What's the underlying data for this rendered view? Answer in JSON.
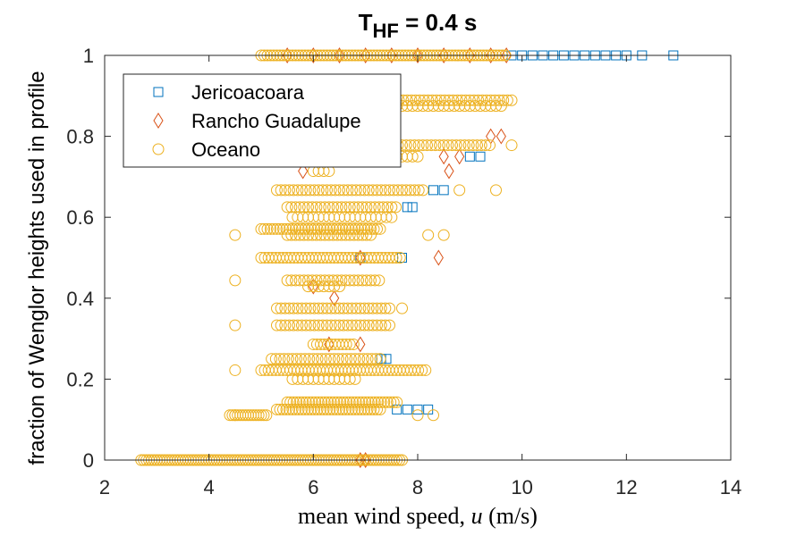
{
  "chart_data": {
    "type": "scatter",
    "title": "T",
    "title_sub": "HF",
    "title_rest": " = 0.4 s",
    "xlabel_pre": "mean wind speed, ",
    "xlabel_var": "u",
    "xlabel_post": " (m/s)",
    "ylabel": "fraction of Wenglor heights used in profile",
    "xlim": [
      2,
      14
    ],
    "ylim": [
      0,
      1
    ],
    "x_ticks": [
      2,
      4,
      6,
      8,
      10,
      12,
      14
    ],
    "x_tick_labels": [
      "2",
      "4",
      "6",
      "8",
      "10",
      "12",
      "14"
    ],
    "y_ticks": [
      0,
      0.2,
      0.4,
      0.6,
      0.8,
      1
    ],
    "y_tick_labels": [
      "0",
      "0.2",
      "0.4",
      "0.6",
      "0.8",
      "1"
    ],
    "grid": false,
    "legend_position": "top-left",
    "series": [
      {
        "name": "Jericoacoara",
        "marker": "square",
        "color": "#0072BD",
        "points": [
          [
            9.8,
            1
          ],
          [
            10.0,
            1
          ],
          [
            10.2,
            1
          ],
          [
            10.4,
            1
          ],
          [
            10.6,
            1
          ],
          [
            10.8,
            1
          ],
          [
            11.0,
            1
          ],
          [
            11.2,
            1
          ],
          [
            11.4,
            1
          ],
          [
            11.6,
            1
          ],
          [
            11.8,
            1
          ],
          [
            12.0,
            1
          ],
          [
            12.3,
            1
          ],
          [
            12.9,
            1
          ],
          [
            9.0,
            0.75
          ],
          [
            9.2,
            0.75
          ],
          [
            8.3,
            0.667
          ],
          [
            8.5,
            0.667
          ],
          [
            7.8,
            0.625
          ],
          [
            7.9,
            0.625
          ],
          [
            7.7,
            0.5
          ],
          [
            6.9,
            0.5
          ],
          [
            7.3,
            0.25
          ],
          [
            7.4,
            0.25
          ],
          [
            7.8,
            0.125
          ],
          [
            8.0,
            0.125
          ],
          [
            8.2,
            0.125
          ],
          [
            7.6,
            0.125
          ]
        ]
      },
      {
        "name": "Rancho Guadalupe",
        "marker": "diamond",
        "color": "#D95319",
        "points": [
          [
            5.5,
            1
          ],
          [
            6.0,
            1
          ],
          [
            6.5,
            1
          ],
          [
            7.0,
            1
          ],
          [
            7.5,
            1
          ],
          [
            8.0,
            1
          ],
          [
            8.5,
            1
          ],
          [
            9.0,
            1
          ],
          [
            9.4,
            1
          ],
          [
            9.7,
            1
          ],
          [
            9.4,
            0.8
          ],
          [
            9.6,
            0.8
          ],
          [
            8.5,
            0.75
          ],
          [
            8.8,
            0.75
          ],
          [
            8.6,
            0.714
          ],
          [
            5.8,
            0.714
          ],
          [
            8.4,
            0.5
          ],
          [
            6.9,
            0.5
          ],
          [
            6.0,
            0.429
          ],
          [
            6.4,
            0.4
          ],
          [
            6.3,
            0.286
          ],
          [
            6.9,
            0.286
          ],
          [
            6.9,
            0
          ],
          [
            7.0,
            0
          ]
        ]
      },
      {
        "name": "Oceano",
        "marker": "circle",
        "color": "#EDB120",
        "points": [
          [
            4.5,
            0.556
          ],
          [
            4.5,
            0.444
          ],
          [
            4.5,
            0.333
          ],
          [
            4.5,
            0.222
          ],
          [
            4.5,
            0.111
          ],
          [
            9.5,
            0.667
          ],
          [
            9.8,
            0.778
          ],
          [
            8.2,
            0.556
          ],
          [
            8.5,
            0.556
          ],
          [
            7.7,
            0.375
          ],
          [
            8.8,
            0.667
          ],
          [
            8.0,
            0.111
          ],
          [
            8.3,
            0.111
          ]
        ],
        "bands": [
          {
            "y": 1,
            "x0": 5.0,
            "x1": 9.7,
            "step": 0.06
          },
          {
            "y": 0.889,
            "x0": 7.0,
            "x1": 9.8,
            "step": 0.08
          },
          {
            "y": 0.875,
            "x0": 7.5,
            "x1": 9.6,
            "step": 0.1
          },
          {
            "y": 0.778,
            "x0": 6.9,
            "x1": 9.4,
            "step": 0.08
          },
          {
            "y": 0.75,
            "x0": 7.3,
            "x1": 8.0,
            "step": 0.1
          },
          {
            "y": 0.714,
            "x0": 6.0,
            "x1": 6.3,
            "step": 0.1
          },
          {
            "y": 0.667,
            "x0": 5.3,
            "x1": 8.1,
            "step": 0.08
          },
          {
            "y": 0.625,
            "x0": 5.5,
            "x1": 7.6,
            "step": 0.08
          },
          {
            "y": 0.6,
            "x0": 5.6,
            "x1": 7.5,
            "step": 0.1
          },
          {
            "y": 0.571,
            "x0": 5.0,
            "x1": 7.3,
            "step": 0.06
          },
          {
            "y": 0.556,
            "x0": 5.5,
            "x1": 7.1,
            "step": 0.08
          },
          {
            "y": 0.5,
            "x0": 5.0,
            "x1": 7.7,
            "step": 0.07
          },
          {
            "y": 0.444,
            "x0": 5.5,
            "x1": 7.3,
            "step": 0.08
          },
          {
            "y": 0.429,
            "x0": 5.9,
            "x1": 6.5,
            "step": 0.1
          },
          {
            "y": 0.375,
            "x0": 5.3,
            "x1": 7.5,
            "step": 0.08
          },
          {
            "y": 0.333,
            "x0": 5.3,
            "x1": 7.5,
            "step": 0.08
          },
          {
            "y": 0.286,
            "x0": 6.0,
            "x1": 6.8,
            "step": 0.07
          },
          {
            "y": 0.25,
            "x0": 5.2,
            "x1": 7.3,
            "step": 0.08
          },
          {
            "y": 0.222,
            "x0": 5.0,
            "x1": 8.2,
            "step": 0.07
          },
          {
            "y": 0.2,
            "x0": 5.6,
            "x1": 6.8,
            "step": 0.1
          },
          {
            "y": 0.143,
            "x0": 5.5,
            "x1": 7.6,
            "step": 0.06
          },
          {
            "y": 0.125,
            "x0": 5.3,
            "x1": 7.3,
            "step": 0.06
          },
          {
            "y": 0.111,
            "x0": 4.4,
            "x1": 5.1,
            "step": 0.05
          },
          {
            "y": 0,
            "x0": 2.7,
            "x1": 7.7,
            "step": 0.05
          }
        ]
      }
    ]
  }
}
